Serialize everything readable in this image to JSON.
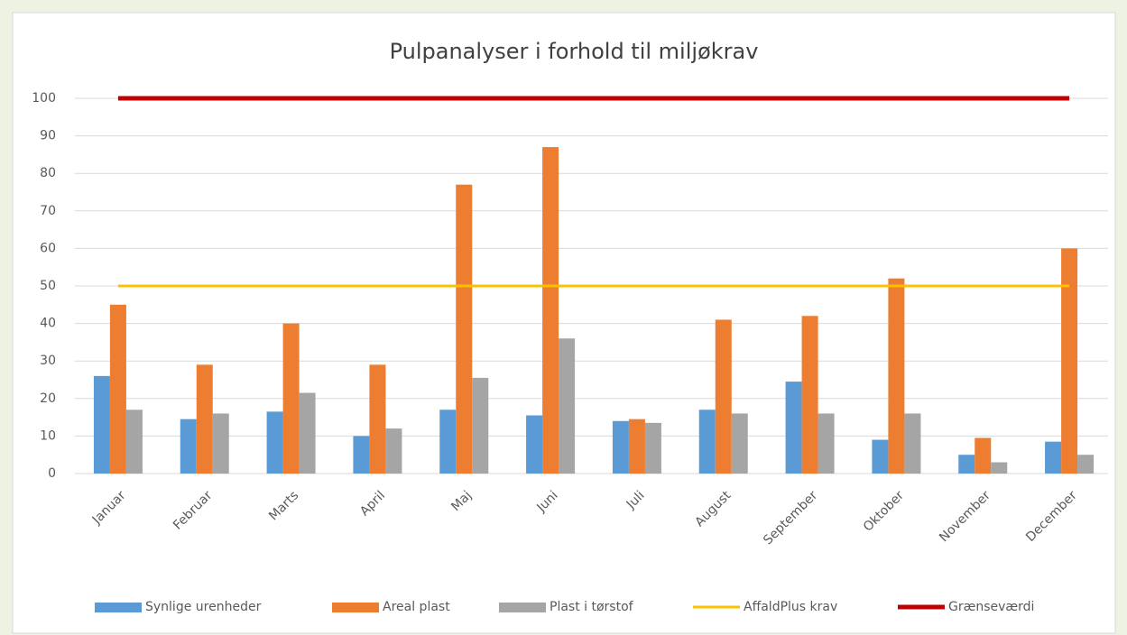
{
  "chart_data": {
    "type": "bar",
    "title": "Pulpanalyser  i forhold  til miljøkrav",
    "categories": [
      "Januar",
      "Februar",
      "Marts",
      "April",
      "Maj",
      "Juni",
      "Juli",
      "August",
      "September",
      "Oktober",
      "November",
      "December"
    ],
    "series": [
      {
        "name": "Synlige urenheder",
        "color": "#5b9bd5",
        "type": "bar",
        "values": [
          26,
          14.5,
          16.5,
          10,
          17,
          15.5,
          14,
          17,
          24.5,
          9,
          5,
          8.5
        ]
      },
      {
        "name": "Areal plast",
        "color": "#ed7d31",
        "type": "bar",
        "values": [
          45,
          29,
          40,
          29,
          77,
          87,
          14.5,
          41,
          42,
          52,
          9.5,
          60
        ]
      },
      {
        "name": "Plast i tørstof",
        "color": "#a5a5a5",
        "type": "bar",
        "values": [
          17,
          16,
          21.5,
          12,
          25.5,
          36,
          13.5,
          16,
          16,
          16,
          3,
          5
        ]
      },
      {
        "name": "AffaldPlus krav",
        "color": "#ffc000",
        "type": "line",
        "values": [
          50,
          50,
          50,
          50,
          50,
          50,
          50,
          50,
          50,
          50,
          50,
          50
        ]
      },
      {
        "name": "Grænseværdi",
        "color": "#c00000",
        "type": "line",
        "values": [
          100,
          100,
          100,
          100,
          100,
          100,
          100,
          100,
          100,
          100,
          100,
          100
        ]
      }
    ],
    "ylim": [
      0,
      100
    ],
    "yticks": [
      0,
      10,
      20,
      30,
      40,
      50,
      60,
      70,
      80,
      90,
      100
    ],
    "grid": true,
    "legend": "bottom"
  }
}
